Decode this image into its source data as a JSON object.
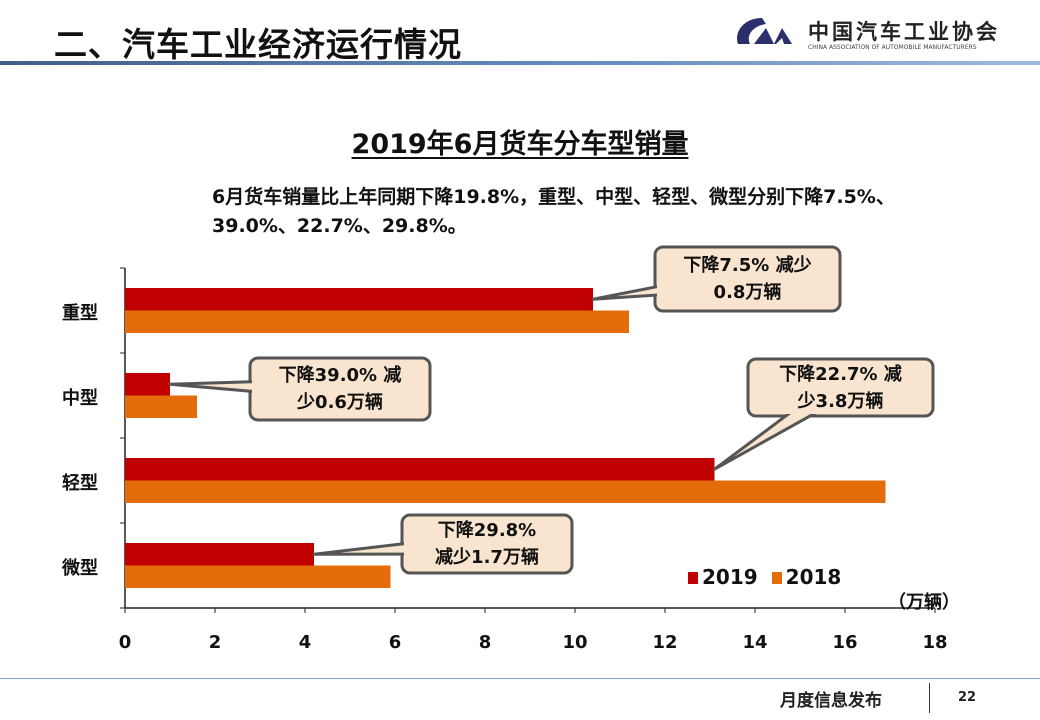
{
  "header": {
    "title": "二、汽车工业经济运行情况",
    "logo_cn": "中国汽车工业协会",
    "logo_en": "CHINA ASSOCIATION OF AUTOMOBILE MANUFACTURERS"
  },
  "summary": "6月货车销量比上年同期下降19.8%，重型、中型、轻型、微型分别下降7.5%、39.0%、22.7%、29.8%。",
  "footer": {
    "text": "月度信息发布",
    "page": "22"
  },
  "colors": {
    "s2019": "#c00000",
    "s2018": "#e46c0a",
    "callout_bg": "#f8e4cf"
  },
  "chart_data": {
    "type": "bar",
    "orientation": "horizontal",
    "title": "2019年6月货车分车型销量",
    "unit_label": "（万辆）",
    "categories": [
      "重型",
      "中型",
      "轻型",
      "微型"
    ],
    "series": [
      {
        "name": "2019",
        "values": [
          10.4,
          1.0,
          13.1,
          4.2
        ]
      },
      {
        "name": "2018",
        "values": [
          11.2,
          1.6,
          16.9,
          5.9
        ]
      }
    ],
    "xlim": [
      0,
      18
    ],
    "xticks": [
      "0",
      "2",
      "4",
      "6",
      "8",
      "10",
      "12",
      "14",
      "16",
      "18"
    ],
    "legend": "bottom-right",
    "annotations": [
      {
        "category": "重型",
        "line1": "下降7.5% 减少",
        "line2": "0.8万辆"
      },
      {
        "category": "中型",
        "line1": "下降39.0% 减",
        "line2": "少0.6万辆"
      },
      {
        "category": "轻型",
        "line1": "下降22.7% 减",
        "line2": "少3.8万辆"
      },
      {
        "category": "微型",
        "line1": "下降29.8%",
        "line2": "减少1.7万辆"
      }
    ]
  }
}
